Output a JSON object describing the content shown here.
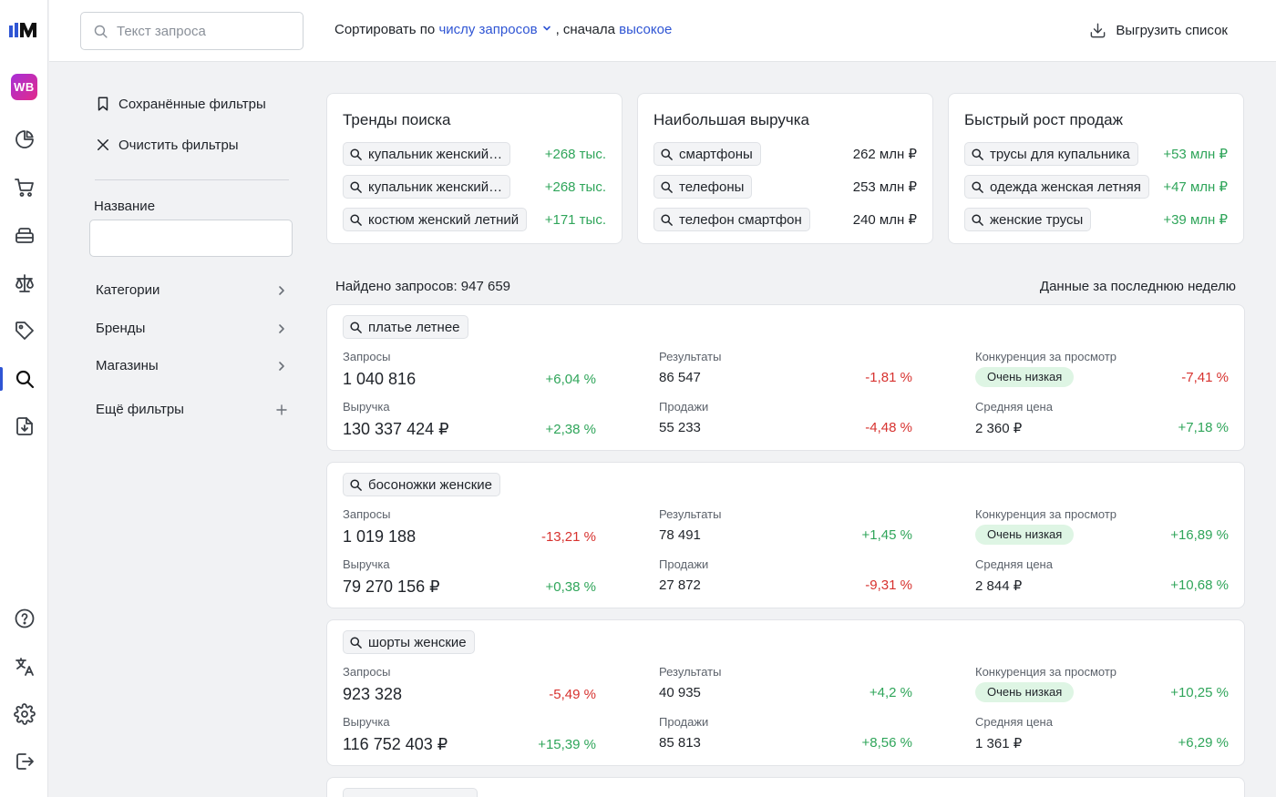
{
  "rail": {
    "brand_badge": "WB",
    "icons": [
      "analytics-icon",
      "cart-icon",
      "warehouse-icon",
      "scales-icon",
      "tag-icon",
      "search-icon",
      "download-report-icon",
      "help-icon",
      "translate-icon",
      "settings-icon",
      "logout-icon"
    ]
  },
  "topbar": {
    "search_placeholder": "Текст запроса",
    "sort_prefix": "Сортировать по",
    "sort_field": "числу запросов",
    "sort_mid": ", сначала",
    "sort_order": "высокое",
    "export_label": "Выгрузить список"
  },
  "filters": {
    "saved_label": "Сохранённые фильтры",
    "clear_label": "Очистить фильтры",
    "name_label": "Название",
    "name_value": "",
    "categories": "Категории",
    "brands": "Бренды",
    "shops": "Магазины",
    "more": "Ещё фильтры"
  },
  "trends": [
    {
      "title": "Тренды поиска",
      "rows": [
        {
          "query": "купальник женский…",
          "value": "+268 тыс.",
          "tone": "green"
        },
        {
          "query": "купальник женский…",
          "value": "+268 тыс.",
          "tone": "green"
        },
        {
          "query": "костюм женский летний",
          "value": "+171 тыс.",
          "tone": "green"
        }
      ]
    },
    {
      "title": "Наибольшая выручка",
      "rows": [
        {
          "query": "смартфоны",
          "value": "262 млн ₽",
          "tone": "dark"
        },
        {
          "query": "телефоны",
          "value": "253 млн ₽",
          "tone": "dark"
        },
        {
          "query": "телефон смартфон",
          "value": "240 млн ₽",
          "tone": "dark"
        }
      ]
    },
    {
      "title": "Быстрый рост продаж",
      "rows": [
        {
          "query": "трусы для купальника",
          "value": "+53 млн ₽",
          "tone": "green"
        },
        {
          "query": "одежда женская летняя",
          "value": "+47 млн ₽",
          "tone": "green"
        },
        {
          "query": "женские трусы",
          "value": "+39 млн ₽",
          "tone": "green"
        }
      ]
    }
  ],
  "results_header": {
    "found": "Найдено запросов: 947 659",
    "period": "Данные за последнюю неделю"
  },
  "labels": {
    "requests": "Запросы",
    "revenue": "Выручка",
    "results": "Результаты",
    "sales": "Продажи",
    "competition": "Конкуренция за просмотр",
    "avg_price": "Средняя цена"
  },
  "results": [
    {
      "query": "платье летнее",
      "requests": "1 040 816",
      "requests_delta": "+6,04 %",
      "requests_tone": "green",
      "revenue": "130 337 424 ₽",
      "revenue_delta": "+2,38 %",
      "revenue_tone": "green",
      "results": "86 547",
      "results_delta": "-1,81 %",
      "results_tone": "red",
      "sales": "55 233",
      "sales_delta": "-4,48 %",
      "sales_tone": "red",
      "competition": "Очень низкая",
      "competition_delta": "-7,41 %",
      "competition_tone": "red",
      "avg_price": "2 360 ₽",
      "avg_price_delta": "+7,18 %",
      "avg_price_tone": "green"
    },
    {
      "query": "босоножки женские",
      "requests": "1 019 188",
      "requests_delta": "-13,21 %",
      "requests_tone": "red",
      "revenue": "79 270 156 ₽",
      "revenue_delta": "+0,38 %",
      "revenue_tone": "green",
      "results": "78 491",
      "results_delta": "+1,45 %",
      "results_tone": "green",
      "sales": "27 872",
      "sales_delta": "-9,31 %",
      "sales_tone": "red",
      "competition": "Очень низкая",
      "competition_delta": "+16,89 %",
      "competition_tone": "green",
      "avg_price": "2 844 ₽",
      "avg_price_delta": "+10,68 %",
      "avg_price_tone": "green"
    },
    {
      "query": "шорты женские",
      "requests": "923 328",
      "requests_delta": "-5,49 %",
      "requests_tone": "red",
      "revenue": "116 752 403 ₽",
      "revenue_delta": "+15,39 %",
      "revenue_tone": "green",
      "results": "40 935",
      "results_delta": "+4,2 %",
      "results_tone": "green",
      "sales": "85 813",
      "sales_delta": "+8,56 %",
      "sales_tone": "green",
      "competition": "Очень низкая",
      "competition_delta": "+10,25 %",
      "competition_tone": "green",
      "avg_price": "1 361 ₽",
      "avg_price_delta": "+6,29 %",
      "avg_price_tone": "green"
    }
  ]
}
